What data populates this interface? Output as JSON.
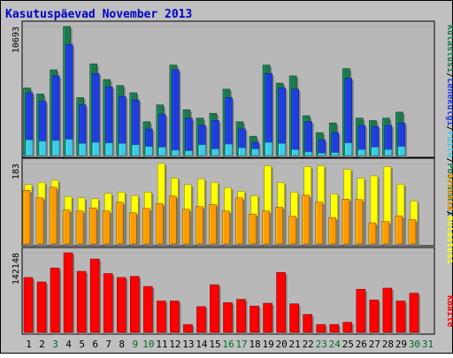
{
  "chart_data": {
    "type": "bar",
    "title": "Kasutuspäevad November 2013",
    "categories": [
      "1",
      "2",
      "3",
      "4",
      "5",
      "6",
      "7",
      "8",
      "9",
      "10",
      "11",
      "12",
      "13",
      "14",
      "15",
      "16",
      "17",
      "18",
      "19",
      "20",
      "21",
      "22",
      "23",
      "24",
      "25",
      "26",
      "27",
      "28",
      "29",
      "30",
      "31"
    ],
    "weekend_days": [
      "3",
      "9",
      "10",
      "16",
      "17",
      "23",
      "24",
      "30",
      "31"
    ],
    "colors": {
      "title": "#0000cc",
      "frame_bg": "#c0c0c0",
      "plot_bg": "#b8b8b8",
      "weekday_label": "#000000",
      "weekend_label": "#006a2e",
      "kulastused": "#1a7a4e",
      "lehekuljed": "#1e3de0",
      "failid": "#3bcce8",
      "arvutid": "#ff9a00",
      "kulastusi": "#ffff00",
      "kbaite": "#ff0000"
    },
    "panels": [
      {
        "ylabel": "10693",
        "ymax": 10693,
        "series": [
          {
            "name": "Külastusi",
            "values": [
              5600,
              5100,
              7100,
              10693,
              4800,
              7600,
              6300,
              5800,
              5200,
              2800,
              4200,
              7500,
              3800,
              3100,
              3500,
              5500,
              2800,
              1600,
              7500,
              6000,
              6600,
              3300,
              1900,
              2700,
              7200,
              3100,
              2900,
              3100,
              3600,
              0,
              0
            ]
          },
          {
            "name": "Lehekülgi",
            "values": [
              5200,
              4500,
              6600,
              9200,
              4200,
              6800,
              5700,
              4900,
              4600,
              2200,
              3400,
              7100,
              3100,
              2500,
              2900,
              4800,
              2200,
              1100,
              6800,
              5600,
              5500,
              2800,
              1300,
              1900,
              6400,
              2500,
              2400,
              2500,
              2700,
              0,
              0
            ]
          },
          {
            "name": "Faile",
            "values": [
              1300,
              1200,
              1250,
              1350,
              1000,
              1100,
              1050,
              1000,
              900,
              750,
              700,
              450,
              400,
              900,
              550,
              950,
              650,
              550,
              1100,
              1000,
              500,
              300,
              200,
              250,
              1050,
              500,
              700,
              500,
              750,
              0,
              0
            ]
          }
        ]
      },
      {
        "ylabel": "183",
        "ymax": 183,
        "series": [
          {
            "name": "Külastusi",
            "values": [
              135,
              140,
              145,
              108,
              105,
              103,
              115,
              118,
              110,
              118,
              183,
              150,
              135,
              148,
              140,
              128,
              120,
              110,
              178,
              140,
              118,
              176,
              178,
              114,
              170,
              150,
              155,
              176,
              136,
              98,
              0
            ]
          },
          {
            "name": "Arvutid",
            "values": [
              122,
              105,
              129,
              77,
              75,
              82,
              75,
              95,
              71,
              81,
              92,
              109,
              79,
              85,
              90,
              75,
              105,
              68,
              75,
              84,
              63,
              111,
              95,
              60,
              102,
              101,
              48,
              51,
              64,
              55,
              0
            ]
          }
        ]
      },
      {
        "ylabel": "142148",
        "ymax": 142148,
        "series": [
          {
            "name": "KBaite",
            "values": [
              98000,
              90000,
              115000,
              142148,
              109000,
              131000,
              105000,
              98000,
              100000,
              82000,
              56000,
              56000,
              14000,
              46000,
              85000,
              53000,
              59000,
              47000,
              52000,
              107000,
              51000,
              32000,
              14000,
              14000,
              18000,
              77000,
              58000,
              79000,
              56000,
              70000,
              0
            ]
          }
        ]
      }
    ],
    "legend_right": {
      "top": [
        "Külastusi",
        "/",
        "Lehekülgi",
        "/",
        "Faile",
        "/",
        "Pöördumisi"
      ],
      "middle": [
        "Arvutid",
        "/",
        "Külastusi"
      ],
      "bottom": [
        "KBaite"
      ]
    }
  }
}
